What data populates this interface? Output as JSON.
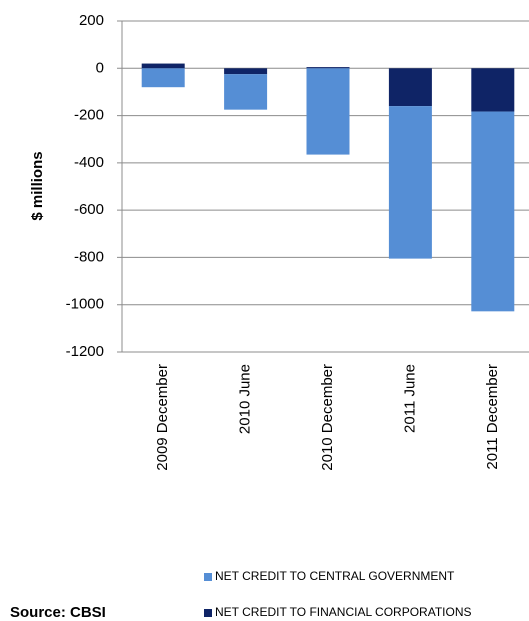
{
  "chart_data": {
    "type": "stacked_bar",
    "y_label": "$ millions",
    "source": "Source: CBSI",
    "categories": [
      "2009 December",
      "2010 June",
      "2010 December",
      "2011 June",
      "2011 December"
    ],
    "series": [
      {
        "name": "NET CREDIT TO CENTRAL GOVERNMENT",
        "color": "#558ed5",
        "values": [
          -80,
          -150,
          -365,
          -645,
          -845
        ]
      },
      {
        "name": "NET CREDIT TO FINANCIAL CORPORATIONS",
        "color": "#0f2466",
        "values": [
          20,
          -25,
          5,
          -160,
          -183
        ]
      }
    ],
    "ylim": [
      -1200,
      200
    ],
    "yticks": [
      -1200,
      -1000,
      -800,
      -600,
      -400,
      -200,
      0,
      200
    ],
    "grid": true
  }
}
